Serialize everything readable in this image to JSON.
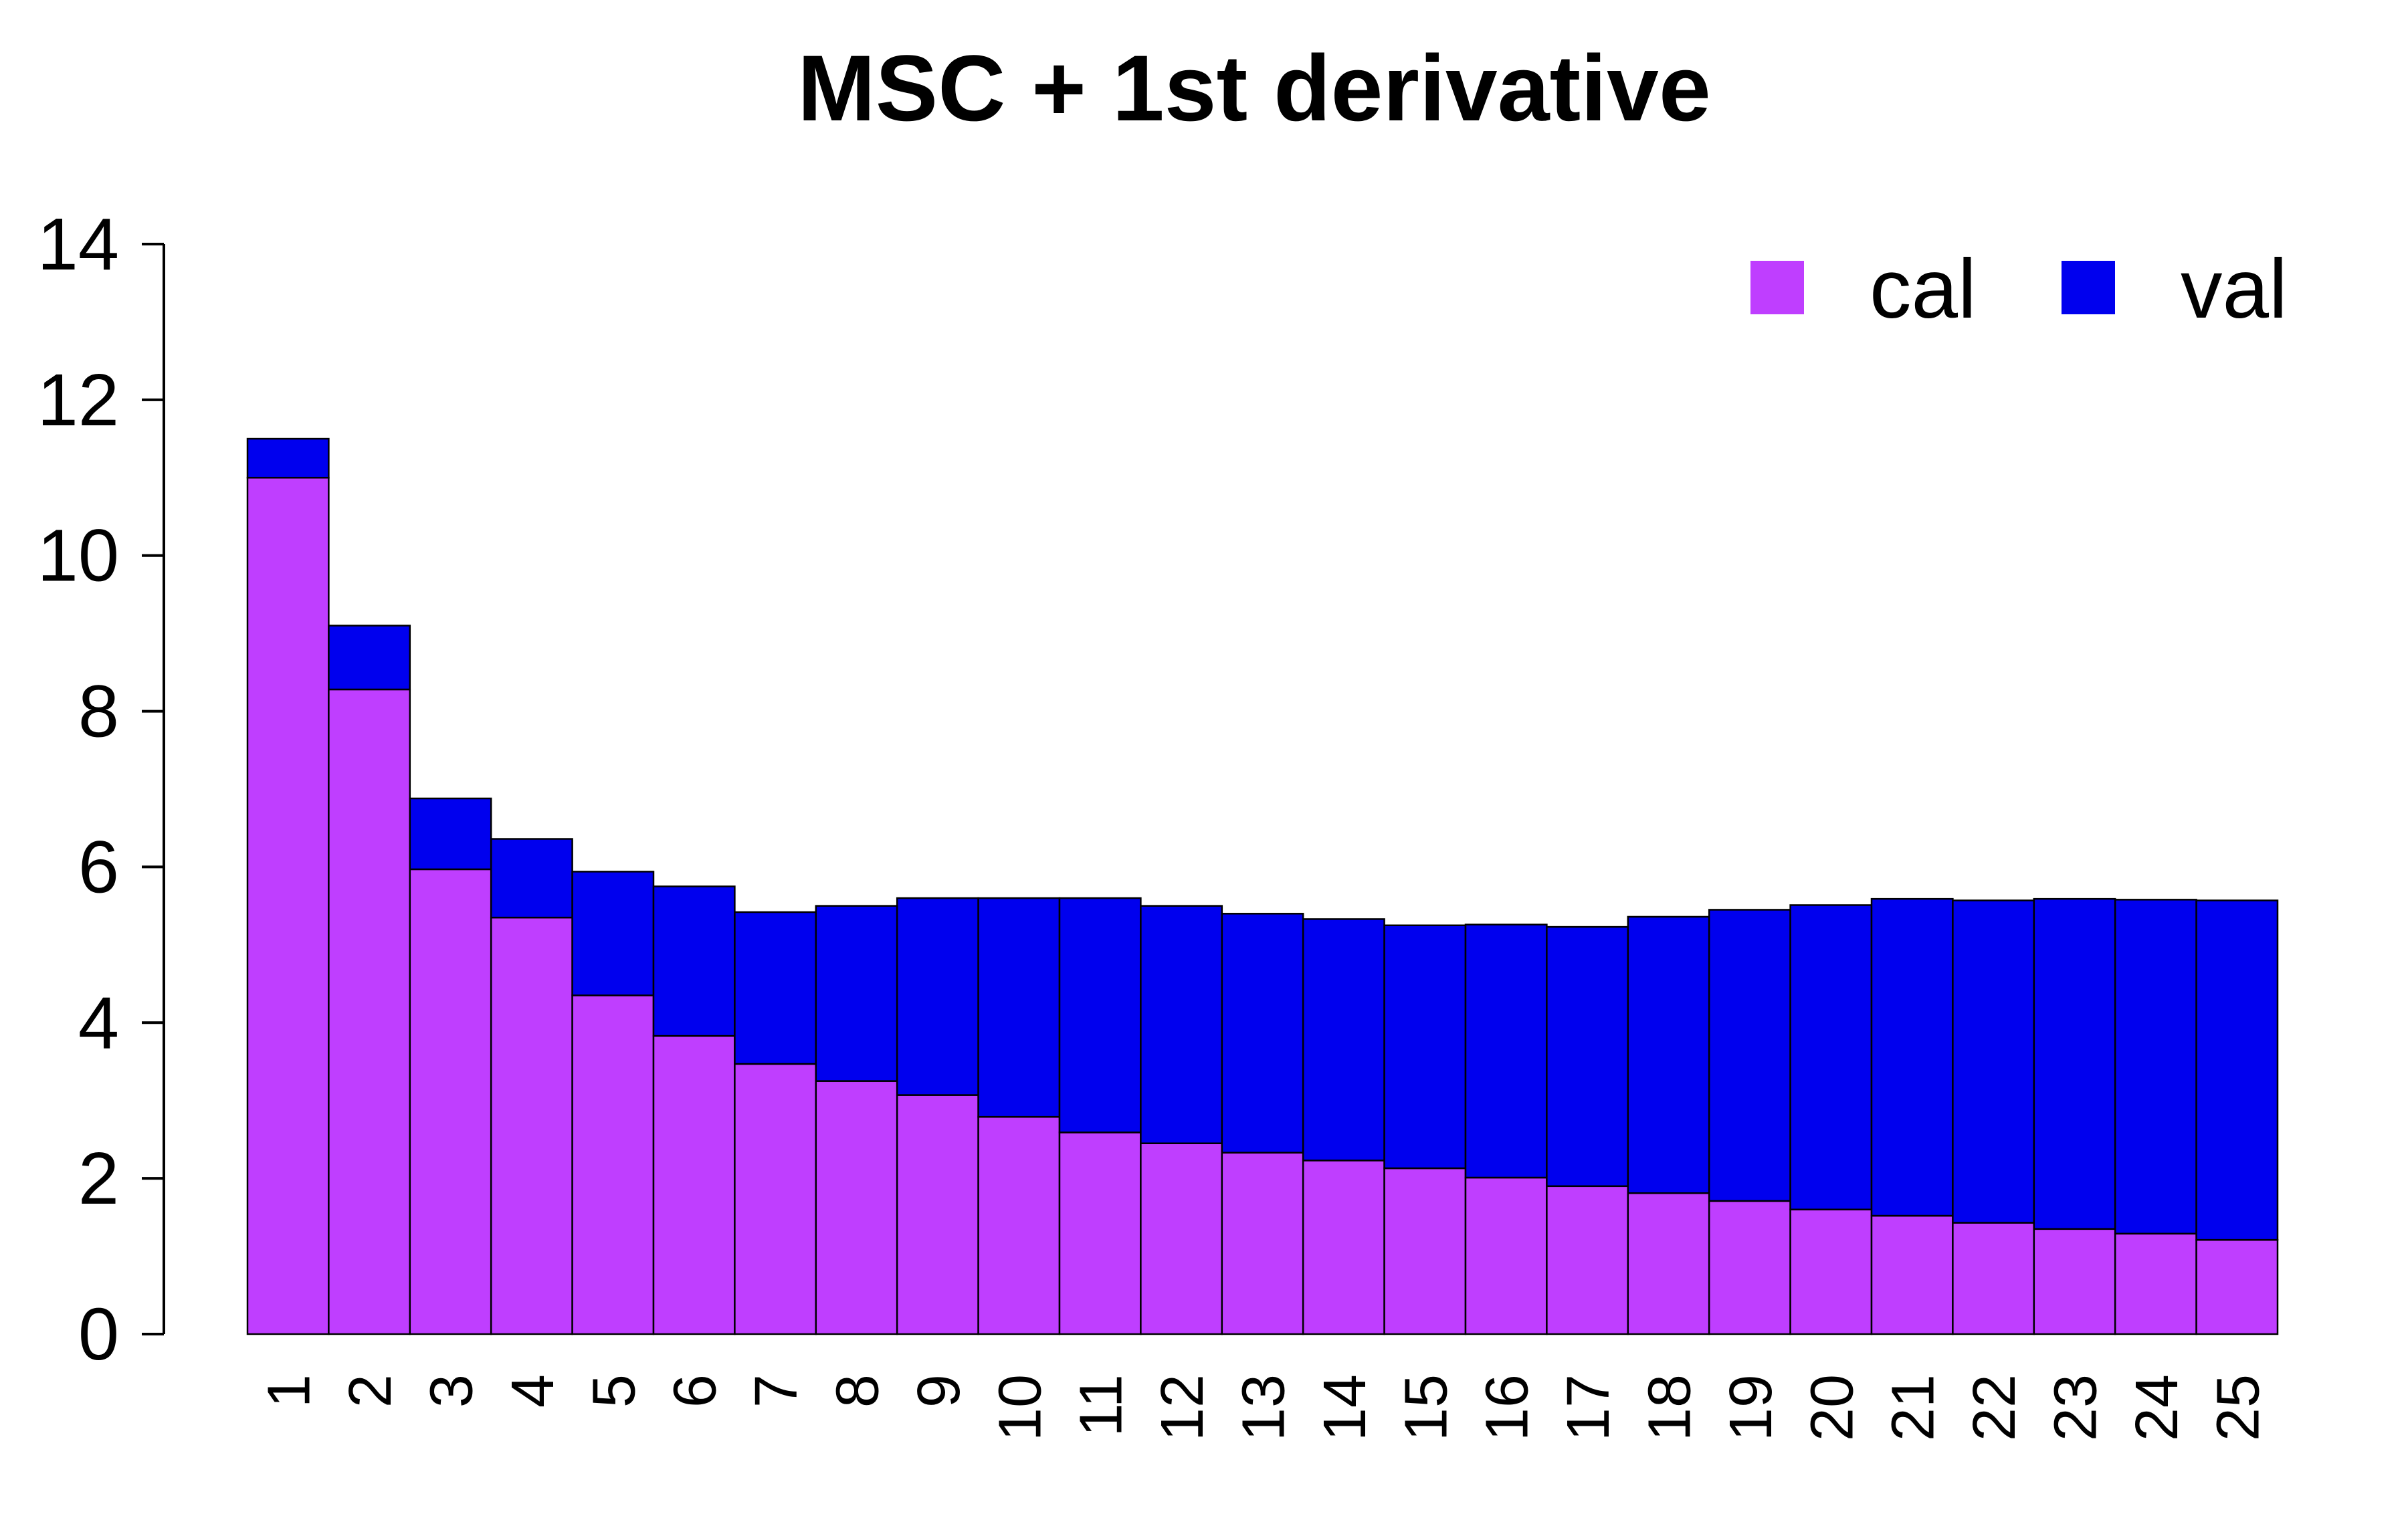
{
  "chart_data": {
    "type": "bar",
    "stacked": true,
    "title": "MSC + 1st derivative",
    "xlabel": "",
    "ylabel": "",
    "ylim": [
      0,
      14
    ],
    "yticks": [
      0,
      2,
      4,
      6,
      8,
      10,
      12,
      14
    ],
    "categories": [
      "1",
      "2",
      "3",
      "4",
      "5",
      "6",
      "7",
      "8",
      "9",
      "10",
      "11",
      "12",
      "13",
      "14",
      "15",
      "16",
      "17",
      "18",
      "19",
      "20",
      "21",
      "22",
      "23",
      "24",
      "25"
    ],
    "series": [
      {
        "name": "cal",
        "color": "#BF3EFF",
        "values": [
          11.0,
          8.28,
          5.97,
          5.35,
          4.35,
          3.83,
          3.47,
          3.25,
          3.07,
          2.79,
          2.59,
          2.45,
          2.33,
          2.23,
          2.13,
          2.01,
          1.9,
          1.81,
          1.71,
          1.6,
          1.52,
          1.43,
          1.35,
          1.29,
          1.21
        ]
      },
      {
        "name": "val",
        "color": "#0000EE",
        "values": [
          0.5,
          0.82,
          0.91,
          1.01,
          1.59,
          1.92,
          1.95,
          2.25,
          2.53,
          2.81,
          3.01,
          3.05,
          3.07,
          3.1,
          3.12,
          3.25,
          3.33,
          3.55,
          3.74,
          3.91,
          4.07,
          4.14,
          4.24,
          4.29,
          4.36
        ]
      }
    ],
    "legend": {
      "position": "top-right"
    },
    "grid": false
  }
}
